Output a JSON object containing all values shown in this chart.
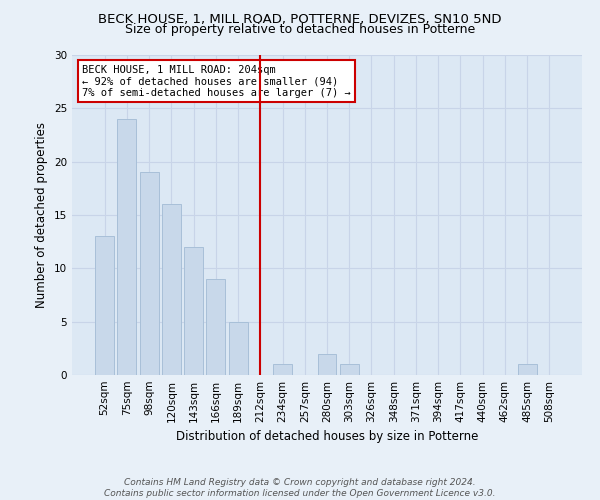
{
  "title": "BECK HOUSE, 1, MILL ROAD, POTTERNE, DEVIZES, SN10 5ND",
  "subtitle": "Size of property relative to detached houses in Potterne",
  "xlabel": "Distribution of detached houses by size in Potterne",
  "ylabel": "Number of detached properties",
  "categories": [
    "52sqm",
    "75sqm",
    "98sqm",
    "120sqm",
    "143sqm",
    "166sqm",
    "189sqm",
    "212sqm",
    "234sqm",
    "257sqm",
    "280sqm",
    "303sqm",
    "326sqm",
    "348sqm",
    "371sqm",
    "394sqm",
    "417sqm",
    "440sqm",
    "462sqm",
    "485sqm",
    "508sqm"
  ],
  "values": [
    13,
    24,
    19,
    16,
    12,
    9,
    5,
    0,
    1,
    0,
    2,
    1,
    0,
    0,
    0,
    0,
    0,
    0,
    0,
    1,
    0
  ],
  "bar_color": "#c8d8ea",
  "bar_edge_color": "#a8c0d8",
  "vline_color": "#cc0000",
  "vline_x_index": 7,
  "annotation_line1": "BECK HOUSE, 1 MILL ROAD: 204sqm",
  "annotation_line2": "← 92% of detached houses are smaller (94)",
  "annotation_line3": "7% of semi-detached houses are larger (7) →",
  "annotation_box_facecolor": "#ffffff",
  "annotation_box_edgecolor": "#cc0000",
  "ylim": [
    0,
    30
  ],
  "yticks": [
    0,
    5,
    10,
    15,
    20,
    25,
    30
  ],
  "grid_color": "#c8d4e8",
  "plot_bg_color": "#dce8f4",
  "fig_bg_color": "#e8f0f8",
  "footer_line1": "Contains HM Land Registry data © Crown copyright and database right 2024.",
  "footer_line2": "Contains public sector information licensed under the Open Government Licence v3.0.",
  "title_fontsize": 9.5,
  "subtitle_fontsize": 9,
  "ylabel_fontsize": 8.5,
  "xlabel_fontsize": 8.5,
  "tick_fontsize": 7.5,
  "annotation_fontsize": 7.5,
  "footer_fontsize": 6.5
}
